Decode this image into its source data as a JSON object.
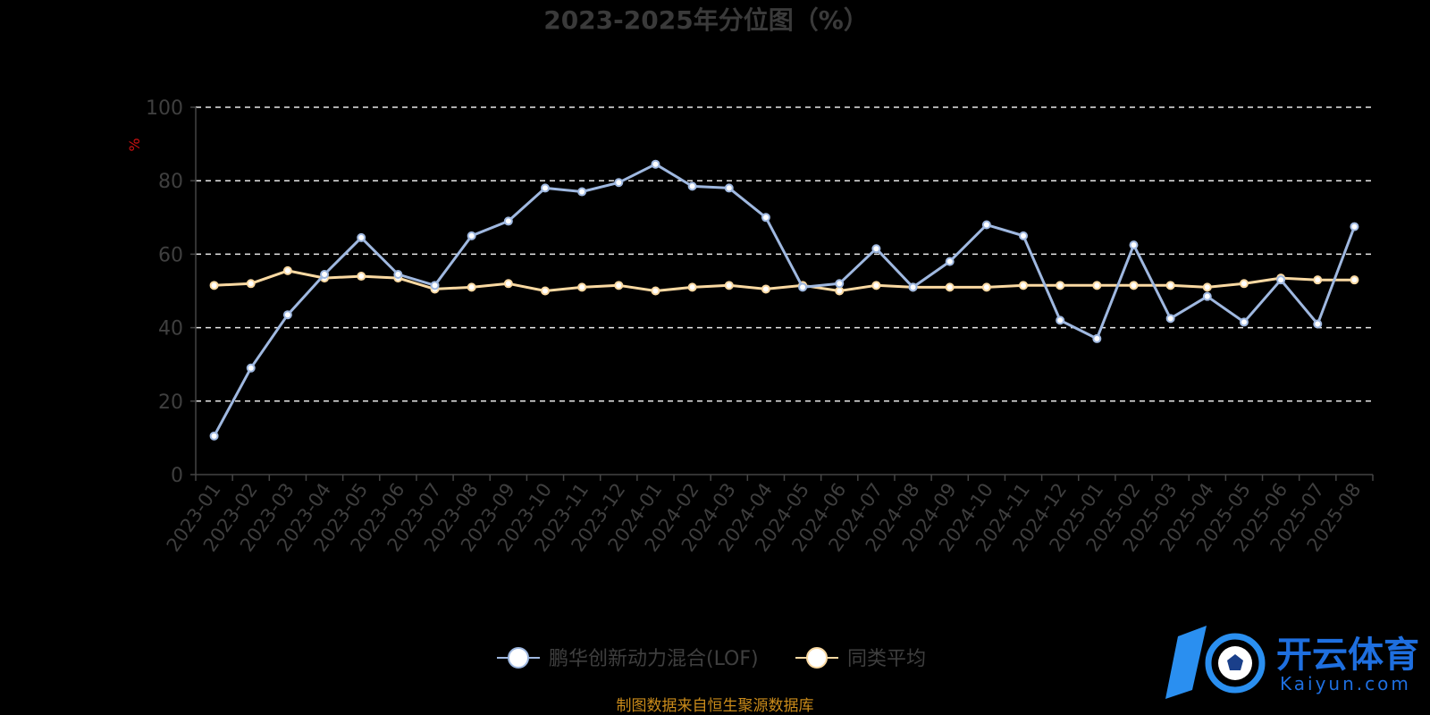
{
  "chart_data": {
    "type": "line",
    "title": "2023-2025年分位图（%）",
    "xlabel": "",
    "ylabel": "%",
    "ylim": [
      0,
      100
    ],
    "yticks": [
      0,
      20,
      40,
      60,
      80,
      100
    ],
    "grid": true,
    "legend_position": "bottom-center",
    "categories": [
      "2023-01",
      "2023-02",
      "2023-03",
      "2023-04",
      "2023-05",
      "2023-06",
      "2023-07",
      "2023-08",
      "2023-09",
      "2023-10",
      "2023-11",
      "2023-12",
      "2024-01",
      "2024-02",
      "2024-03",
      "2024-04",
      "2024-05",
      "2024-06",
      "2024-07",
      "2024-08",
      "2024-09",
      "2024-10",
      "2024-11",
      "2024-12",
      "2025-01",
      "2025-02",
      "2025-03",
      "2025-04",
      "2025-05",
      "2025-06",
      "2025-07",
      "2025-08"
    ],
    "series": [
      {
        "name": "鹏华创新动力混合(LOF)",
        "color": "#9fb8e0",
        "values": [
          10.5,
          29,
          43.5,
          54.5,
          64.5,
          54.5,
          51.5,
          65,
          69,
          78,
          77,
          79.5,
          84.5,
          78.5,
          78,
          70,
          51,
          52,
          61.5,
          51,
          58,
          68,
          65,
          42,
          37,
          62.5,
          42.5,
          48.5,
          41.5,
          53,
          41,
          67.5
        ]
      },
      {
        "name": "同类平均",
        "color": "#fad9a2",
        "values": [
          51.5,
          52,
          55.5,
          53.5,
          54,
          53.5,
          50.5,
          51,
          52,
          50,
          51,
          51.5,
          50,
          51,
          51.5,
          50.5,
          51.5,
          50,
          51.5,
          51,
          51,
          51,
          51.5,
          51.5,
          51.5,
          51.5,
          51.5,
          51,
          52,
          53.5,
          53,
          53
        ]
      }
    ]
  },
  "footer": {
    "source": "制图数据来自恒生聚源数据库"
  },
  "watermark": {
    "cn": "开云体育",
    "en": "Kaiyun.com",
    "color": "#1e6fe0"
  }
}
